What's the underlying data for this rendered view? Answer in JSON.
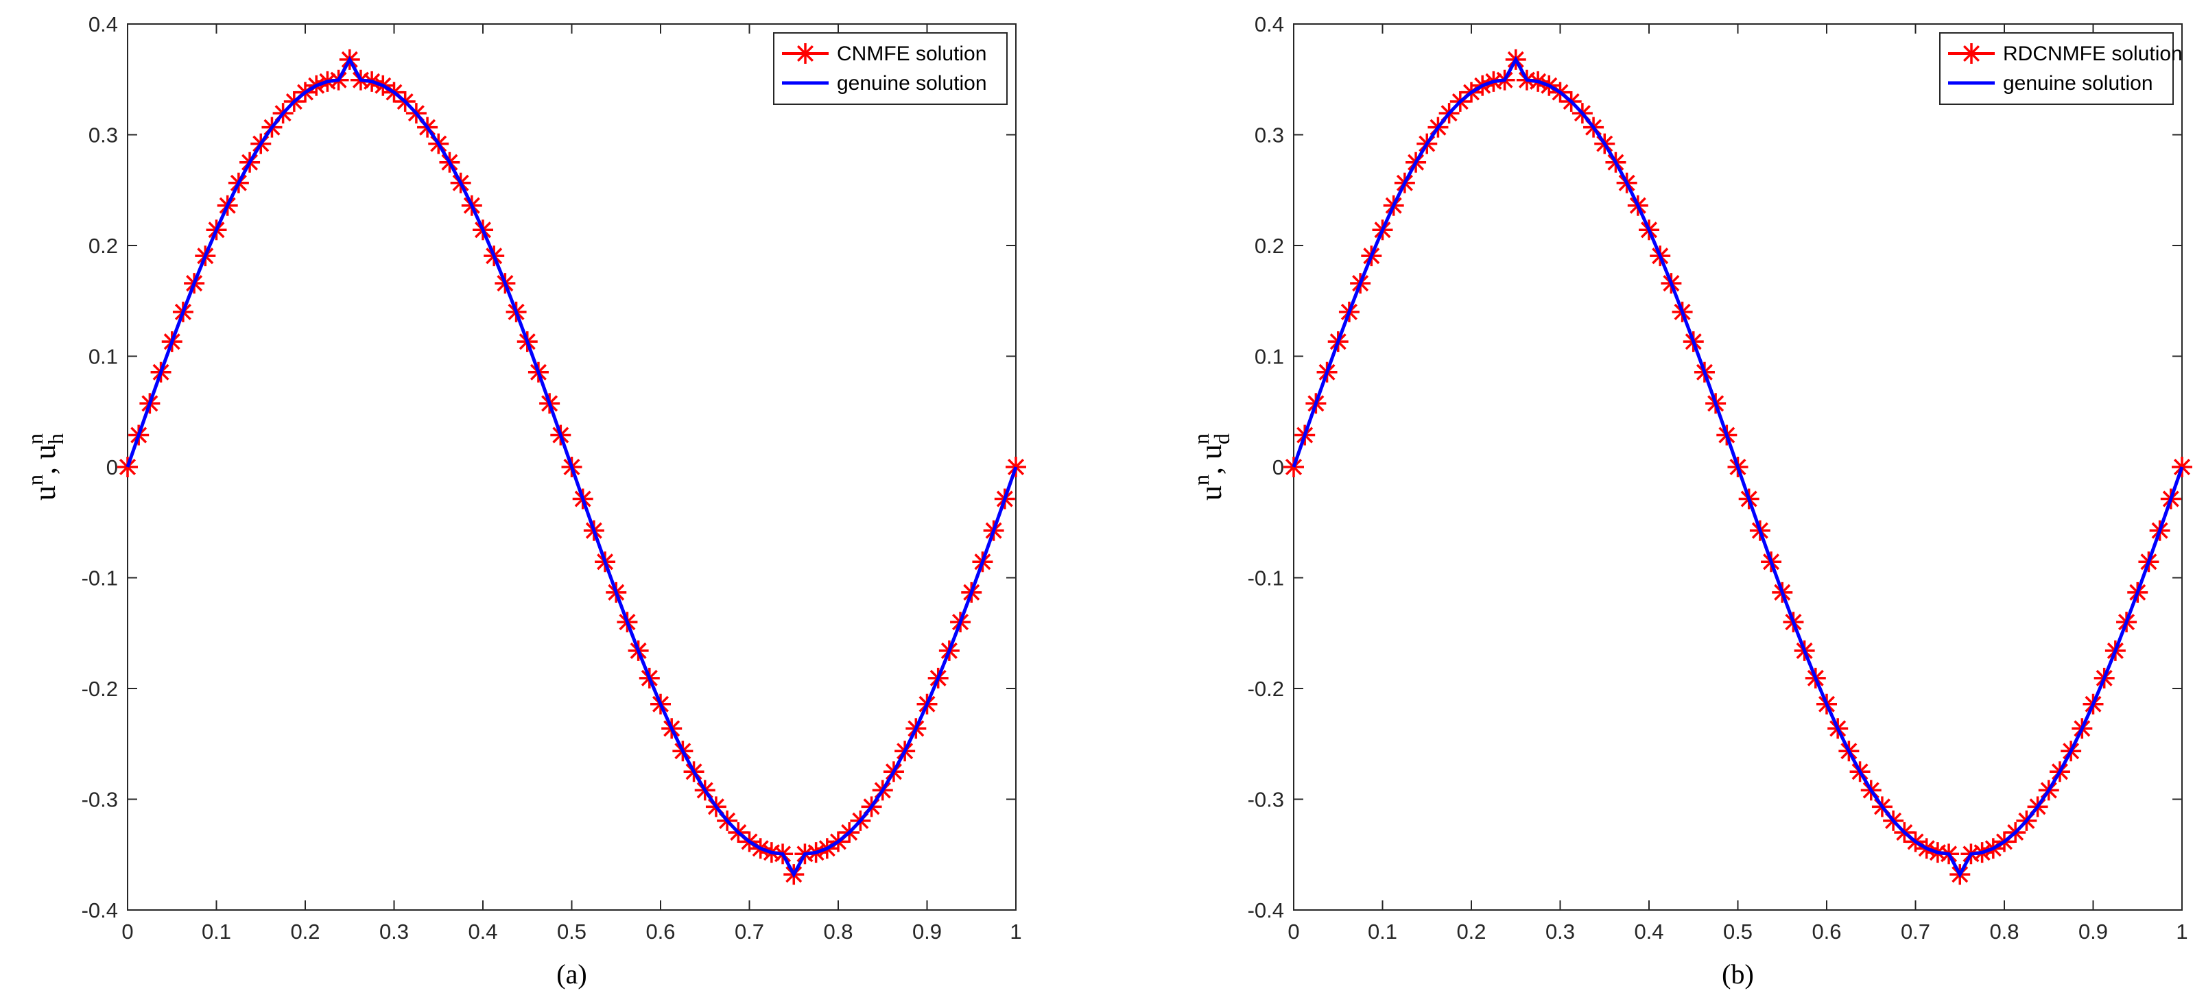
{
  "chart_data": [
    {
      "type": "line",
      "caption": "(a)",
      "ylabel": {
        "base1": "u",
        "sup1": "n",
        "sep": ", ",
        "base2": "u",
        "sup2": "n",
        "sub2": "h"
      },
      "xlim": [
        0,
        1
      ],
      "ylim": [
        -0.4,
        0.4
      ],
      "xticks": [
        0,
        0.1,
        0.2,
        0.3,
        0.4,
        0.5,
        0.6,
        0.7,
        0.8,
        0.9,
        1
      ],
      "xtick_labels": [
        "0",
        "0.1",
        "0.2",
        "0.3",
        "0.4",
        "0.5",
        "0.6",
        "0.7",
        "0.8",
        "0.9",
        "1"
      ],
      "yticks": [
        -0.4,
        -0.3,
        -0.2,
        -0.1,
        0,
        0.1,
        0.2,
        0.3,
        0.4
      ],
      "ytick_labels": [
        "-0.4",
        "-0.3",
        "-0.2",
        "-0.1",
        "0",
        "0.1",
        "0.2",
        "0.3",
        "0.4"
      ],
      "grid": false,
      "legend_position": "top-right",
      "series": [
        {
          "name": "CNMFE solution",
          "color": "#ff0000",
          "marker": "asterisk",
          "x": [
            0,
            0.0125,
            0.025,
            0.0375,
            0.05,
            0.0625,
            0.075,
            0.0875,
            0.1,
            0.1125,
            0.125,
            0.1375,
            0.15,
            0.1625,
            0.175,
            0.1875,
            0.2,
            0.2125,
            0.225,
            0.2375,
            0.25,
            0.2625,
            0.275,
            0.2875,
            0.3,
            0.3125,
            0.325,
            0.3375,
            0.35,
            0.3625,
            0.375,
            0.3875,
            0.4,
            0.4125,
            0.425,
            0.4375,
            0.45,
            0.4625,
            0.475,
            0.4875,
            0.5,
            0.5125,
            0.525,
            0.5375,
            0.55,
            0.5625,
            0.575,
            0.5875,
            0.6,
            0.6125,
            0.625,
            0.6375,
            0.65,
            0.6625,
            0.675,
            0.6875,
            0.7,
            0.7125,
            0.725,
            0.7375,
            0.75,
            0.7625,
            0.775,
            0.7875,
            0.8,
            0.8125,
            0.825,
            0.8375,
            0.85,
            0.8625,
            0.875,
            0.8875,
            0.9,
            0.9125,
            0.925,
            0.9375,
            0.95,
            0.9625,
            0.975,
            0.9875,
            1
          ],
          "y": [
            0,
            0.0288,
            0.0574,
            0.0856,
            0.1132,
            0.14,
            0.1659,
            0.1906,
            0.2141,
            0.2361,
            0.2565,
            0.2751,
            0.2919,
            0.3067,
            0.3194,
            0.33,
            0.3383,
            0.3444,
            0.3481,
            0.3494,
            0.3679,
            0.3494,
            0.3481,
            0.3444,
            0.3383,
            0.33,
            0.3194,
            0.3067,
            0.2919,
            0.2751,
            0.2565,
            0.2361,
            0.2141,
            0.1906,
            0.1659,
            0.14,
            0.1132,
            0.0856,
            0.0574,
            0.0288,
            0,
            -0.0288,
            -0.0574,
            -0.0856,
            -0.1132,
            -0.14,
            -0.1659,
            -0.1906,
            -0.2141,
            -0.2361,
            -0.2565,
            -0.2751,
            -0.2919,
            -0.3067,
            -0.3194,
            -0.33,
            -0.3383,
            -0.3444,
            -0.3481,
            -0.3494,
            -0.3679,
            -0.3494,
            -0.3481,
            -0.3444,
            -0.3383,
            -0.33,
            -0.3194,
            -0.3067,
            -0.2919,
            -0.2751,
            -0.2565,
            -0.2361,
            -0.2141,
            -0.1906,
            -0.1659,
            -0.14,
            -0.1132,
            -0.0856,
            -0.0574,
            -0.0288,
            0
          ]
        },
        {
          "name": "genuine solution",
          "color": "#0000ff",
          "marker": "none",
          "x": [
            0,
            0.0125,
            0.025,
            0.0375,
            0.05,
            0.0625,
            0.075,
            0.0875,
            0.1,
            0.1125,
            0.125,
            0.1375,
            0.15,
            0.1625,
            0.175,
            0.1875,
            0.2,
            0.2125,
            0.225,
            0.2375,
            0.25,
            0.2625,
            0.275,
            0.2875,
            0.3,
            0.3125,
            0.325,
            0.3375,
            0.35,
            0.3625,
            0.375,
            0.3875,
            0.4,
            0.4125,
            0.425,
            0.4375,
            0.45,
            0.4625,
            0.475,
            0.4875,
            0.5,
            0.5125,
            0.525,
            0.5375,
            0.55,
            0.5625,
            0.575,
            0.5875,
            0.6,
            0.6125,
            0.625,
            0.6375,
            0.65,
            0.6625,
            0.675,
            0.6875,
            0.7,
            0.7125,
            0.725,
            0.7375,
            0.75,
            0.7625,
            0.775,
            0.7875,
            0.8,
            0.8125,
            0.825,
            0.8375,
            0.85,
            0.8625,
            0.875,
            0.8875,
            0.9,
            0.9125,
            0.925,
            0.9375,
            0.95,
            0.9625,
            0.975,
            0.9875,
            1
          ],
          "y": [
            0,
            0.0288,
            0.0574,
            0.0856,
            0.1132,
            0.14,
            0.1659,
            0.1906,
            0.2141,
            0.2361,
            0.2565,
            0.2751,
            0.2919,
            0.3067,
            0.3194,
            0.33,
            0.3383,
            0.3444,
            0.3481,
            0.3494,
            0.3679,
            0.3494,
            0.3481,
            0.3444,
            0.3383,
            0.33,
            0.3194,
            0.3067,
            0.2919,
            0.2751,
            0.2565,
            0.2361,
            0.2141,
            0.1906,
            0.1659,
            0.14,
            0.1132,
            0.0856,
            0.0574,
            0.0288,
            0,
            -0.0288,
            -0.0574,
            -0.0856,
            -0.1132,
            -0.14,
            -0.1659,
            -0.1906,
            -0.2141,
            -0.2361,
            -0.2565,
            -0.2751,
            -0.2919,
            -0.3067,
            -0.3194,
            -0.33,
            -0.3383,
            -0.3444,
            -0.3481,
            -0.3494,
            -0.3679,
            -0.3494,
            -0.3481,
            -0.3444,
            -0.3383,
            -0.33,
            -0.3194,
            -0.3067,
            -0.2919,
            -0.2751,
            -0.2565,
            -0.2361,
            -0.2141,
            -0.1906,
            -0.1659,
            -0.14,
            -0.1132,
            -0.0856,
            -0.0574,
            -0.0288,
            0
          ]
        }
      ]
    },
    {
      "type": "line",
      "caption": "(b)",
      "ylabel": {
        "base1": "u",
        "sup1": "n",
        "sep": ", ",
        "base2": "u",
        "sup2": "n",
        "sub2": "d"
      },
      "xlim": [
        0,
        1
      ],
      "ylim": [
        -0.4,
        0.4
      ],
      "xticks": [
        0,
        0.1,
        0.2,
        0.3,
        0.4,
        0.5,
        0.6,
        0.7,
        0.8,
        0.9,
        1
      ],
      "xtick_labels": [
        "0",
        "0.1",
        "0.2",
        "0.3",
        "0.4",
        "0.5",
        "0.6",
        "0.7",
        "0.8",
        "0.9",
        "1"
      ],
      "yticks": [
        -0.4,
        -0.3,
        -0.2,
        -0.1,
        0,
        0.1,
        0.2,
        0.3,
        0.4
      ],
      "ytick_labels": [
        "-0.4",
        "-0.3",
        "-0.2",
        "-0.1",
        "0",
        "0.1",
        "0.2",
        "0.3",
        "0.4"
      ],
      "grid": false,
      "legend_position": "top-right",
      "series": [
        {
          "name": "RDCNMFE solution",
          "color": "#ff0000",
          "marker": "asterisk",
          "x": [
            0,
            0.0125,
            0.025,
            0.0375,
            0.05,
            0.0625,
            0.075,
            0.0875,
            0.1,
            0.1125,
            0.125,
            0.1375,
            0.15,
            0.1625,
            0.175,
            0.1875,
            0.2,
            0.2125,
            0.225,
            0.2375,
            0.25,
            0.2625,
            0.275,
            0.2875,
            0.3,
            0.3125,
            0.325,
            0.3375,
            0.35,
            0.3625,
            0.375,
            0.3875,
            0.4,
            0.4125,
            0.425,
            0.4375,
            0.45,
            0.4625,
            0.475,
            0.4875,
            0.5,
            0.5125,
            0.525,
            0.5375,
            0.55,
            0.5625,
            0.575,
            0.5875,
            0.6,
            0.6125,
            0.625,
            0.6375,
            0.65,
            0.6625,
            0.675,
            0.6875,
            0.7,
            0.7125,
            0.725,
            0.7375,
            0.75,
            0.7625,
            0.775,
            0.7875,
            0.8,
            0.8125,
            0.825,
            0.8375,
            0.85,
            0.8625,
            0.875,
            0.8875,
            0.9,
            0.9125,
            0.925,
            0.9375,
            0.95,
            0.9625,
            0.975,
            0.9875,
            1
          ],
          "y": [
            0,
            0.0288,
            0.0574,
            0.0856,
            0.1132,
            0.14,
            0.1659,
            0.1906,
            0.2141,
            0.2361,
            0.2565,
            0.2751,
            0.2919,
            0.3067,
            0.3194,
            0.33,
            0.3383,
            0.3444,
            0.3481,
            0.3494,
            0.3679,
            0.3494,
            0.3481,
            0.3444,
            0.3383,
            0.33,
            0.3194,
            0.3067,
            0.2919,
            0.2751,
            0.2565,
            0.2361,
            0.2141,
            0.1906,
            0.1659,
            0.14,
            0.1132,
            0.0856,
            0.0574,
            0.0288,
            0,
            -0.0288,
            -0.0574,
            -0.0856,
            -0.1132,
            -0.14,
            -0.1659,
            -0.1906,
            -0.2141,
            -0.2361,
            -0.2565,
            -0.2751,
            -0.2919,
            -0.3067,
            -0.3194,
            -0.33,
            -0.3383,
            -0.3444,
            -0.3481,
            -0.3494,
            -0.3679,
            -0.3494,
            -0.3481,
            -0.3444,
            -0.3383,
            -0.33,
            -0.3194,
            -0.3067,
            -0.2919,
            -0.2751,
            -0.2565,
            -0.2361,
            -0.2141,
            -0.1906,
            -0.1659,
            -0.14,
            -0.1132,
            -0.0856,
            -0.0574,
            -0.0288,
            0
          ]
        },
        {
          "name": "genuine solution",
          "color": "#0000ff",
          "marker": "none",
          "x": [
            0,
            0.0125,
            0.025,
            0.0375,
            0.05,
            0.0625,
            0.075,
            0.0875,
            0.1,
            0.1125,
            0.125,
            0.1375,
            0.15,
            0.1625,
            0.175,
            0.1875,
            0.2,
            0.2125,
            0.225,
            0.2375,
            0.25,
            0.2625,
            0.275,
            0.2875,
            0.3,
            0.3125,
            0.325,
            0.3375,
            0.35,
            0.3625,
            0.375,
            0.3875,
            0.4,
            0.4125,
            0.425,
            0.4375,
            0.45,
            0.4625,
            0.475,
            0.4875,
            0.5,
            0.5125,
            0.525,
            0.5375,
            0.55,
            0.5625,
            0.575,
            0.5875,
            0.6,
            0.6125,
            0.625,
            0.6375,
            0.65,
            0.6625,
            0.675,
            0.6875,
            0.7,
            0.7125,
            0.725,
            0.7375,
            0.75,
            0.7625,
            0.775,
            0.7875,
            0.8,
            0.8125,
            0.825,
            0.8375,
            0.85,
            0.8625,
            0.875,
            0.8875,
            0.9,
            0.9125,
            0.925,
            0.9375,
            0.95,
            0.9625,
            0.975,
            0.9875,
            1
          ],
          "y": [
            0,
            0.0288,
            0.0574,
            0.0856,
            0.1132,
            0.14,
            0.1659,
            0.1906,
            0.2141,
            0.2361,
            0.2565,
            0.2751,
            0.2919,
            0.3067,
            0.3194,
            0.33,
            0.3383,
            0.3444,
            0.3481,
            0.3494,
            0.3679,
            0.3494,
            0.3481,
            0.3444,
            0.3383,
            0.33,
            0.3194,
            0.3067,
            0.2919,
            0.2751,
            0.2565,
            0.2361,
            0.2141,
            0.1906,
            0.1659,
            0.14,
            0.1132,
            0.0856,
            0.0574,
            0.0288,
            0,
            -0.0288,
            -0.0574,
            -0.0856,
            -0.1132,
            -0.14,
            -0.1659,
            -0.1906,
            -0.2141,
            -0.2361,
            -0.2565,
            -0.2751,
            -0.2919,
            -0.3067,
            -0.3194,
            -0.33,
            -0.3383,
            -0.3444,
            -0.3481,
            -0.3494,
            -0.3679,
            -0.3494,
            -0.3481,
            -0.3444,
            -0.3383,
            -0.33,
            -0.3194,
            -0.3067,
            -0.2919,
            -0.2751,
            -0.2565,
            -0.2361,
            -0.2141,
            -0.1906,
            -0.1659,
            -0.14,
            -0.1132,
            -0.0856,
            -0.0574,
            -0.0288,
            0
          ]
        }
      ]
    }
  ]
}
